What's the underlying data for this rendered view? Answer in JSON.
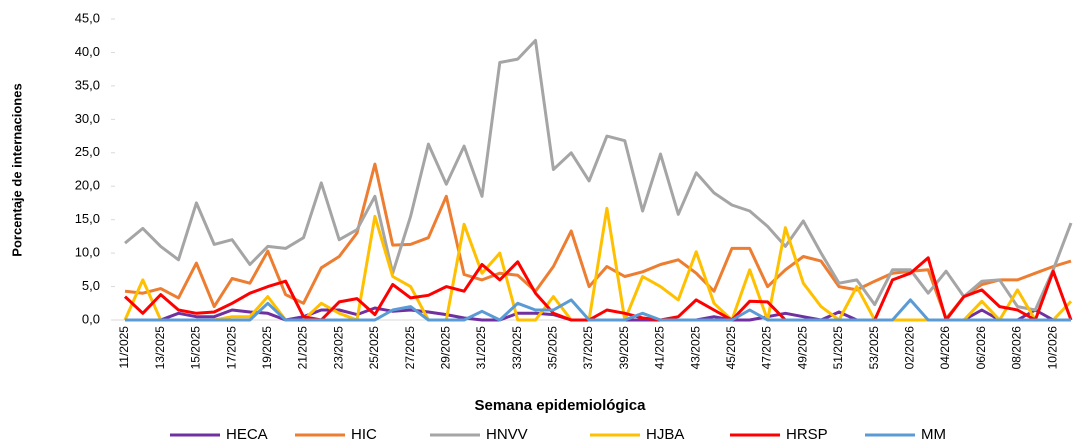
{
  "chart_data": {
    "type": "line",
    "y_label": "Porcentaje de internaciones",
    "x_label": "Semana epidemiológica",
    "categories": [
      "11/2025",
      null,
      "13/2025",
      null,
      "15/2025",
      null,
      "17/2025",
      null,
      "19/2025",
      null,
      "21/2025",
      null,
      "23/2025",
      null,
      "25/2025",
      null,
      "27/2025",
      null,
      "29/2025",
      null,
      "31/2025",
      null,
      "33/2025",
      null,
      "35/2025",
      null,
      "37/2025",
      null,
      "39/2025",
      null,
      "41/2025",
      null,
      "43/2025",
      null,
      "45/2025",
      null,
      "47/2025",
      null,
      "49/2025",
      null,
      "51/2025",
      null,
      "53/2025",
      null,
      "02/2026",
      null,
      "04/2026",
      null,
      "06/2026",
      null,
      "08/2026",
      null,
      "10/2026",
      null
    ],
    "ylim": [
      0,
      45
    ],
    "yticks": [
      {
        "value": 0,
        "label": "0,0"
      },
      {
        "value": 5,
        "label": "5,0"
      },
      {
        "value": 10,
        "label": "10,0"
      },
      {
        "value": 15,
        "label": "15,0"
      },
      {
        "value": 20,
        "label": "20,0"
      },
      {
        "value": 25,
        "label": "25,0"
      },
      {
        "value": 30,
        "label": "30,0"
      },
      {
        "value": 35,
        "label": "35,0"
      },
      {
        "value": 40,
        "label": "40,0"
      },
      {
        "value": 45,
        "label": "45,0"
      }
    ],
    "legend": "bottom",
    "series": [
      {
        "name": "HECA",
        "color": "#7030a0",
        "values": [
          0,
          0,
          0,
          1,
          0.5,
          0.5,
          1.5,
          1.2,
          1,
          0,
          0.5,
          1.5,
          1.5,
          0.8,
          1.8,
          1.3,
          1.5,
          1.2,
          0.8,
          0.3,
          0,
          0,
          1,
          1,
          0.8,
          0,
          0,
          0,
          0,
          0,
          0,
          0,
          0,
          0.5,
          0,
          0,
          0.5,
          1,
          0.5,
          0,
          1.2,
          0,
          0,
          0,
          0,
          0,
          0,
          0,
          1.5,
          0,
          0,
          1.5,
          0,
          0
        ]
      },
      {
        "name": "HIC",
        "color": "#ed7d31",
        "values": [
          4.3,
          4,
          4.7,
          3.3,
          8.5,
          2,
          6.2,
          5.5,
          10.3,
          3.8,
          2.5,
          7.8,
          9.5,
          13,
          23.3,
          11.2,
          11.3,
          12.3,
          18.5,
          6.8,
          6,
          7,
          6.7,
          4.3,
          8,
          13.3,
          5,
          8,
          6.5,
          7.2,
          8.3,
          9,
          7,
          4.3,
          10.7,
          10.7,
          5,
          7.5,
          9.5,
          8.8,
          5,
          4.5,
          5.8,
          7,
          7.3,
          7.5,
          0.2,
          3.5,
          5.3,
          6,
          6,
          7,
          8,
          8.8
        ]
      },
      {
        "name": "HNVV",
        "color": "#a5a5a5",
        "values": [
          11.5,
          13.7,
          11,
          9,
          17.5,
          11.3,
          12,
          8.3,
          11,
          10.7,
          12.3,
          20.5,
          12,
          13.5,
          18.5,
          7,
          15.5,
          26.3,
          20.3,
          26,
          18.5,
          38.5,
          39,
          41.8,
          22.5,
          25,
          20.8,
          27.5,
          26.8,
          16.3,
          24.8,
          15.8,
          22,
          19,
          17.2,
          16.3,
          14,
          11,
          14.8,
          10,
          5.5,
          6,
          2.3,
          7.5,
          7.5,
          4,
          7.3,
          3.5,
          5.8,
          6,
          2,
          1.5,
          7.5,
          14.5
        ]
      },
      {
        "name": "HJBA",
        "color": "#ffc000",
        "values": [
          0,
          6,
          0,
          0,
          0,
          0,
          0.5,
          0.5,
          3.5,
          0,
          0,
          2.5,
          1,
          0,
          15.5,
          6.5,
          5,
          0,
          0,
          14.3,
          7,
          10,
          0,
          0,
          3.5,
          0,
          0,
          16.7,
          0,
          6.5,
          5,
          3,
          10.2,
          2.5,
          0,
          7.5,
          0,
          13.8,
          5.5,
          2,
          0,
          5,
          0,
          0,
          0,
          0,
          0,
          0,
          2.8,
          0,
          4.5,
          0,
          0,
          2.8
        ]
      },
      {
        "name": "HRSP",
        "color": "#ff0000",
        "values": [
          3.5,
          1,
          3.8,
          1.5,
          1,
          1.2,
          2.5,
          4,
          5,
          5.8,
          0.5,
          0,
          2.7,
          3.2,
          0.8,
          5.3,
          3.3,
          3.7,
          5,
          4.3,
          8.3,
          6,
          8.7,
          4,
          1,
          0,
          0,
          1.5,
          1,
          0.3,
          0,
          0.5,
          3,
          1.5,
          0,
          2.8,
          2.7,
          0,
          0,
          0,
          0,
          0,
          0,
          6,
          7,
          9.3,
          0,
          3.5,
          4.5,
          2,
          1.5,
          0,
          7.3,
          0
        ]
      },
      {
        "name": "MM",
        "color": "#5b9bd5",
        "values": [
          0,
          0,
          0,
          0,
          0,
          0,
          0,
          0,
          2.5,
          0,
          0,
          0,
          0,
          0,
          0,
          1.5,
          2,
          0,
          0,
          0,
          1.3,
          0,
          2.5,
          1.5,
          1.5,
          3,
          0,
          0,
          0,
          1,
          0,
          0,
          0,
          0,
          0,
          1.5,
          0,
          0,
          0,
          0,
          0,
          0,
          0,
          0,
          3,
          0,
          0,
          0,
          0,
          0,
          0,
          0,
          0,
          0
        ]
      }
    ]
  }
}
